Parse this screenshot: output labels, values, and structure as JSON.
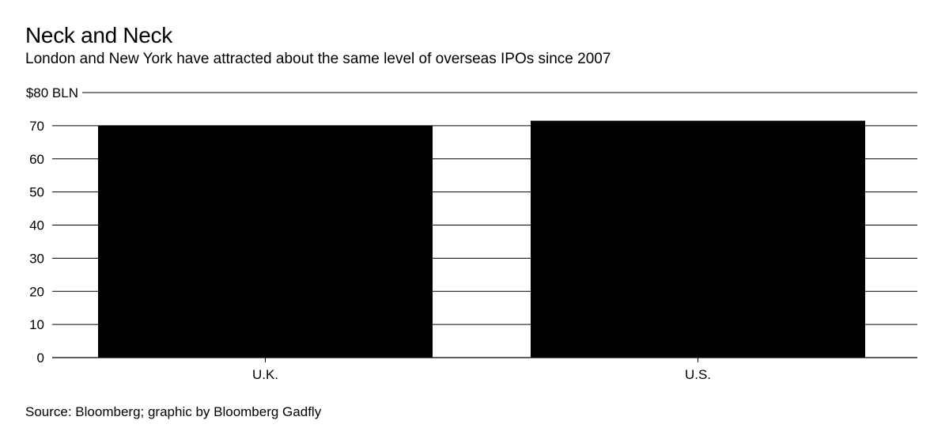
{
  "chart_data": {
    "type": "bar",
    "title": "Neck and Neck",
    "subtitle": "London and New York have attracted about the same level of overseas IPOs since 2007",
    "categories": [
      "U.K.",
      "U.S."
    ],
    "values": [
      70,
      71.5
    ],
    "ylim": [
      0,
      80
    ],
    "ytick_values": [
      0,
      10,
      20,
      30,
      40,
      50,
      60,
      70,
      80
    ],
    "ytick_labels": [
      "0",
      "10",
      "20",
      "30",
      "40",
      "50",
      "60",
      "70",
      "$80 BLN"
    ],
    "xlabel": "",
    "ylabel": "",
    "grid": true,
    "legend": "none",
    "bar_color": "#000000",
    "source": "Source: Bloomberg; graphic by Bloomberg Gadfly"
  }
}
